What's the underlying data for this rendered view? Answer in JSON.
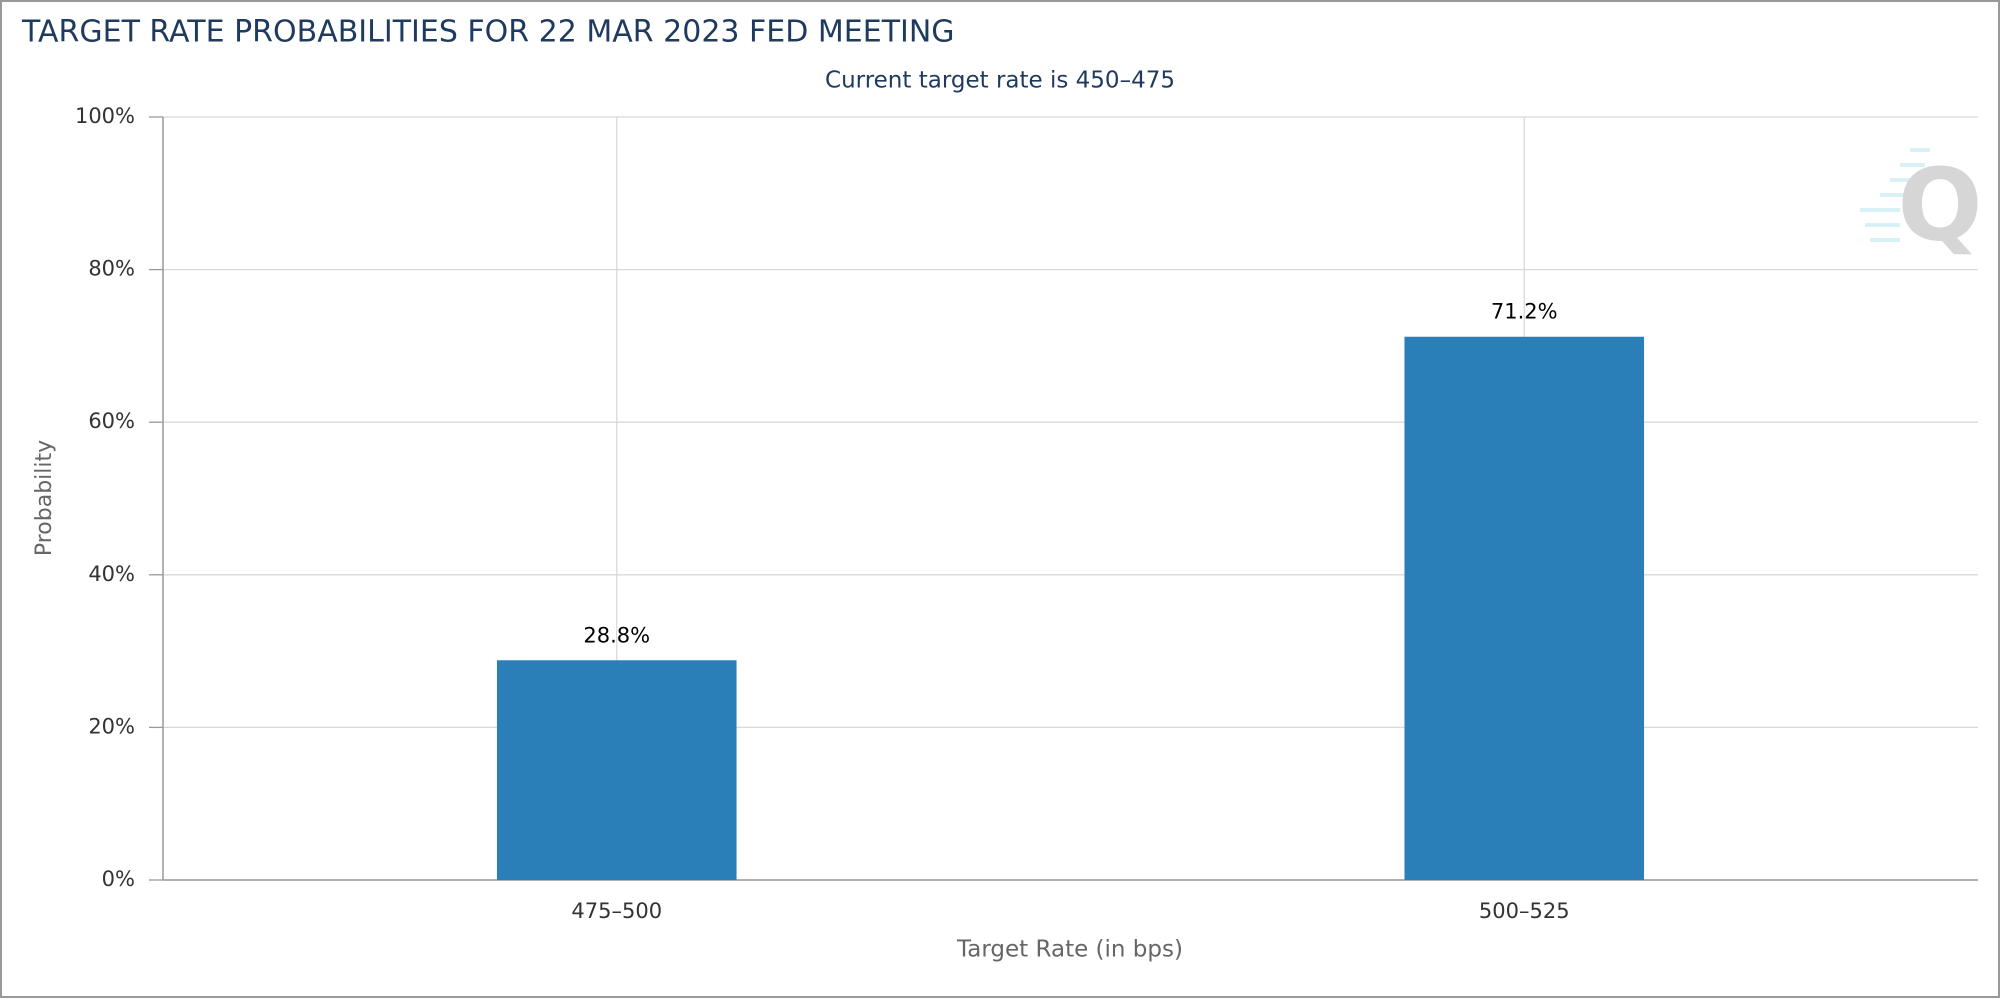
{
  "chart_data": {
    "type": "bar",
    "title": "TARGET RATE PROBABILITIES FOR 22 MAR 2023 FED MEETING",
    "subtitle": "Current target rate is 450–475",
    "x_label": "Target Rate (in bps)",
    "y_label": "Probability",
    "categories": [
      "475–500",
      "500–525"
    ],
    "values": [
      28.8,
      71.2
    ],
    "value_labels": [
      "28.8%",
      "71.2%"
    ],
    "color": "#2a7fb8",
    "ylim": [
      0,
      100
    ],
    "yticks": [
      {
        "value": 0,
        "label": "0%"
      },
      {
        "value": 20,
        "label": "20%"
      },
      {
        "value": 40,
        "label": "40%"
      },
      {
        "value": 60,
        "label": "60%"
      },
      {
        "value": 80,
        "label": "80%"
      },
      {
        "value": 100,
        "label": "100%"
      }
    ],
    "grid": true
  }
}
